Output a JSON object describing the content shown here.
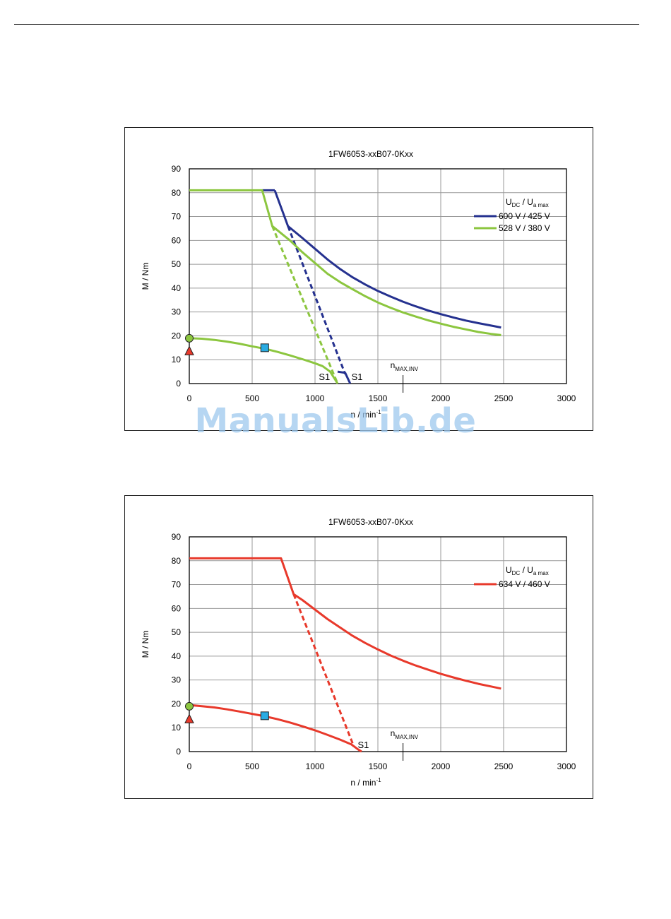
{
  "page": {
    "watermark": "ManualsLib.de"
  },
  "chart_data": [
    {
      "type": "line",
      "title": "1FW6053-xxB07-0Kxx",
      "ylabel": "M / Nm",
      "xlabel": "n / min",
      "xlabel_sup": "-1",
      "xlim": [
        0,
        3000
      ],
      "ylim": [
        0,
        90
      ],
      "xticks": [
        0,
        500,
        1000,
        1500,
        2000,
        2500,
        3000
      ],
      "yticks": [
        0,
        10,
        20,
        30,
        40,
        50,
        60,
        70,
        80,
        90
      ],
      "grid": true,
      "legend_position": "top-right",
      "legend_header": {
        "u": "U",
        "u_sub": "DC",
        "sep": "  /  ",
        "u2": "U",
        "u2_sub": "a max"
      },
      "series": [
        {
          "name": "600 V / 425 V",
          "color": "#25318f",
          "in_legend": true,
          "lines": [
            {
              "style": "solid",
              "points": [
                [
                  680,
                  81
                ],
                [
                  680,
                  81
                ],
                [
                  785,
                  66
                ],
                [
                  900,
                  61
                ],
                [
                  1000,
                  56.5
                ],
                [
                  1100,
                  52
                ],
                [
                  1200,
                  48
                ],
                [
                  1300,
                  44.5
                ],
                [
                  1400,
                  41.5
                ],
                [
                  1500,
                  38.8
                ],
                [
                  1600,
                  36.5
                ],
                [
                  1700,
                  34.3
                ],
                [
                  1800,
                  32.4
                ],
                [
                  1900,
                  30.6
                ],
                [
                  2000,
                  29.1
                ],
                [
                  2100,
                  27.7
                ],
                [
                  2200,
                  26.4
                ],
                [
                  2300,
                  25.3
                ],
                [
                  2400,
                  24.3
                ],
                [
                  2480,
                  23.5
                ]
              ]
            },
            {
              "style": "solid",
              "points": [
                [
                  580,
                  81
                ],
                [
                  680,
                  81
                ]
              ]
            },
            {
              "style": "dashed",
              "points": [
                [
                  785,
                  66
                ],
                [
                  1240,
                  4
                ]
              ]
            },
            {
              "style": "solid",
              "points": [
                [
                  1180,
                  5
                ],
                [
                  1240,
                  4.5
                ],
                [
                  1280,
                  0
                ]
              ]
            }
          ]
        },
        {
          "name": "528 V / 380 V",
          "color": "#8cc63f",
          "in_legend": true,
          "lines": [
            {
              "style": "solid",
              "points": [
                [
                  0,
                  81
                ],
                [
                  580,
                  81
                ],
                [
                  660,
                  66
                ],
                [
                  800,
                  60
                ],
                [
                  900,
                  55
                ],
                [
                  1000,
                  50.5
                ],
                [
                  1100,
                  46
                ],
                [
                  1200,
                  42.5
                ],
                [
                  1300,
                  39.5
                ],
                [
                  1400,
                  36.6
                ],
                [
                  1500,
                  34
                ],
                [
                  1600,
                  31.8
                ],
                [
                  1700,
                  29.8
                ],
                [
                  1800,
                  28.1
                ],
                [
                  1900,
                  26.5
                ],
                [
                  2000,
                  25.1
                ],
                [
                  2100,
                  23.8
                ],
                [
                  2200,
                  22.7
                ],
                [
                  2300,
                  21.6
                ],
                [
                  2400,
                  20.8
                ],
                [
                  2480,
                  20.3
                ]
              ]
            },
            {
              "style": "dashed",
              "points": [
                [
                  660,
                  66
                ],
                [
                  1180,
                  0
                ]
              ]
            },
            {
              "style": "solid",
              "points": [
                [
                  0,
                  19
                ],
                [
                  100,
                  18.8
                ],
                [
                  200,
                  18.3
                ],
                [
                  300,
                  17.6
                ],
                [
                  400,
                  16.7
                ],
                [
                  500,
                  15.6
                ],
                [
                  600,
                  14.6
                ],
                [
                  700,
                  13.3
                ],
                [
                  800,
                  11.8
                ],
                [
                  900,
                  10.2
                ],
                [
                  1000,
                  8.5
                ],
                [
                  1060,
                  7.3
                ],
                [
                  1120,
                  5
                ],
                [
                  1180,
                  0
                ]
              ]
            }
          ]
        }
      ],
      "markers": [
        {
          "shape": "circle",
          "x": 0,
          "y": 19,
          "color": "#8cc63f"
        },
        {
          "shape": "triangle",
          "x": 0,
          "y": 13.5,
          "color": "#e8392b"
        },
        {
          "shape": "square",
          "x": 600,
          "y": 15,
          "color": "#29abe2"
        }
      ],
      "annotations": [
        {
          "text": "S1",
          "x": 1030,
          "y": 1.5
        },
        {
          "text": "S1",
          "x": 1290,
          "y": 1.5
        }
      ],
      "nmax": {
        "label": "n",
        "sub": "MAX,INV",
        "x": 1700
      }
    },
    {
      "type": "line",
      "title": "1FW6053-xxB07-0Kxx",
      "ylabel": "M / Nm",
      "xlabel": "n / min",
      "xlabel_sup": "-1",
      "xlim": [
        0,
        3000
      ],
      "ylim": [
        0,
        90
      ],
      "xticks": [
        0,
        500,
        1000,
        1500,
        2000,
        2500,
        3000
      ],
      "yticks": [
        0,
        10,
        20,
        30,
        40,
        50,
        60,
        70,
        80,
        90
      ],
      "grid": true,
      "legend_position": "top-right",
      "legend_header": {
        "u": "U",
        "u_sub": "DC",
        "sep": "  /  ",
        "u2": "U",
        "u2_sub": "a max"
      },
      "series": [
        {
          "name": "634 V / 460 V",
          "color": "#e8392b",
          "in_legend": true,
          "lines": [
            {
              "style": "solid",
              "points": [
                [
                  0,
                  81
                ],
                [
                  730,
                  81
                ],
                [
                  830,
                  66
                ],
                [
                  900,
                  63.5
                ],
                [
                  1000,
                  59.5
                ],
                [
                  1100,
                  55.5
                ],
                [
                  1200,
                  52
                ],
                [
                  1300,
                  48.5
                ],
                [
                  1400,
                  45.5
                ],
                [
                  1500,
                  42.8
                ],
                [
                  1600,
                  40.3
                ],
                [
                  1700,
                  38.1
                ],
                [
                  1800,
                  36.1
                ],
                [
                  1900,
                  34.3
                ],
                [
                  2000,
                  32.6
                ],
                [
                  2100,
                  31.1
                ],
                [
                  2200,
                  29.7
                ],
                [
                  2300,
                  28.4
                ],
                [
                  2400,
                  27.3
                ],
                [
                  2480,
                  26.4
                ]
              ]
            },
            {
              "style": "dashed",
              "points": [
                [
                  830,
                  66
                ],
                [
                  1310,
                  2
                ]
              ]
            },
            {
              "style": "solid",
              "points": [
                [
                  0,
                  19.5
                ],
                [
                  100,
                  19
                ],
                [
                  200,
                  18.5
                ],
                [
                  300,
                  17.7
                ],
                [
                  400,
                  16.8
                ],
                [
                  500,
                  15.8
                ],
                [
                  600,
                  14.8
                ],
                [
                  700,
                  13.6
                ],
                [
                  800,
                  12.2
                ],
                [
                  900,
                  10.6
                ],
                [
                  1000,
                  8.9
                ],
                [
                  1100,
                  7
                ],
                [
                  1200,
                  5
                ],
                [
                  1290,
                  3
                ],
                [
                  1340,
                  1
                ],
                [
                  1370,
                  0
                ]
              ]
            }
          ]
        }
      ],
      "markers": [
        {
          "shape": "circle",
          "x": 0,
          "y": 19,
          "color": "#8cc63f"
        },
        {
          "shape": "triangle",
          "x": 0,
          "y": 13.5,
          "color": "#e8392b"
        },
        {
          "shape": "square",
          "x": 600,
          "y": 15,
          "color": "#29abe2"
        }
      ],
      "annotations": [
        {
          "text": "S1",
          "x": 1340,
          "y": 1.5
        }
      ],
      "nmax": {
        "label": "n",
        "sub": "MAX,INV",
        "x": 1700
      }
    }
  ]
}
